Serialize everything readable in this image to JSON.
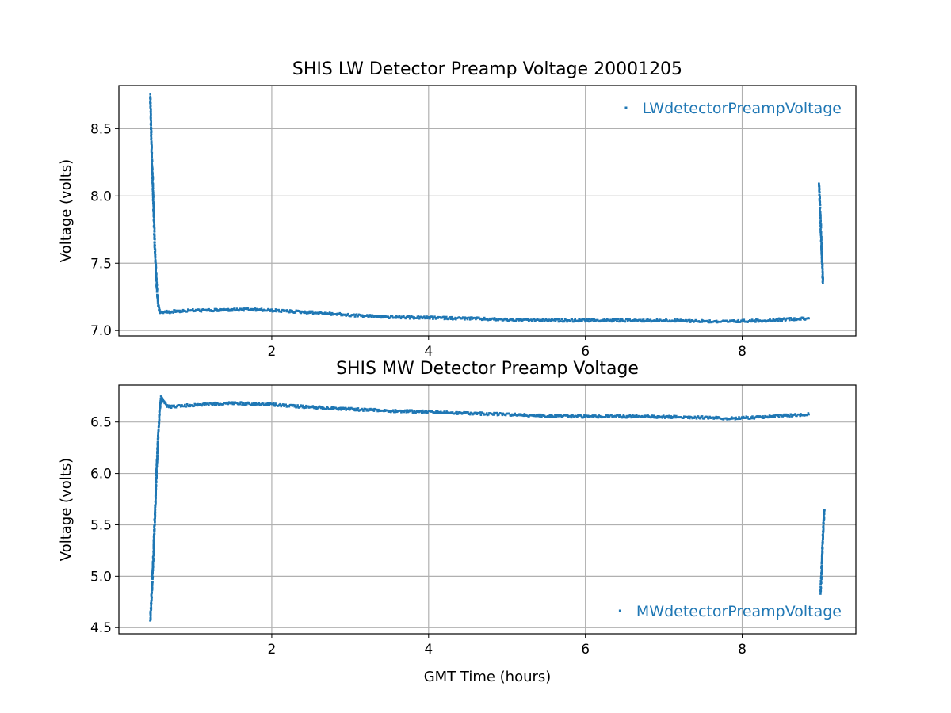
{
  "chart_data": [
    {
      "type": "scatter",
      "title": "SHIS LW Detector Preamp Voltage 20001205",
      "xlabel": "",
      "ylabel": "Voltage (volts)",
      "xlim": [
        0.05,
        9.45
      ],
      "ylim": [
        6.96,
        8.82
      ],
      "xticks": [
        2,
        4,
        6,
        8
      ],
      "yticks": [
        7.0,
        7.5,
        8.0,
        8.5
      ],
      "xtick_labels": [
        "2",
        "4",
        "6",
        "8"
      ],
      "ytick_labels": [
        "7.0",
        "7.5",
        "8.0",
        "8.5"
      ],
      "grid": true,
      "legend_position": "upper-right",
      "color": "#1f77b4",
      "series": [
        {
          "name": "LWdetectorPreampVoltage",
          "segments": [
            {
              "x": [
                0.45,
                0.47,
                0.49,
                0.51,
                0.53,
                0.55,
                0.57,
                0.6,
                0.65,
                0.7,
                0.8,
                1.0,
                1.2,
                1.5,
                1.8,
                2.0,
                2.5,
                3.0,
                3.5,
                4.0,
                4.5,
                5.0,
                5.5,
                6.0,
                6.5,
                7.0,
                7.5,
                7.8,
                8.0,
                8.3,
                8.6,
                8.85
              ],
              "y": [
                8.75,
                8.3,
                7.95,
                7.6,
                7.35,
                7.2,
                7.14,
                7.13,
                7.14,
                7.14,
                7.145,
                7.15,
                7.15,
                7.155,
                7.155,
                7.15,
                7.135,
                7.115,
                7.1,
                7.095,
                7.09,
                7.08,
                7.075,
                7.075,
                7.075,
                7.075,
                7.07,
                7.065,
                7.07,
                7.075,
                7.085,
                7.09
              ]
            },
            {
              "x": [
                8.98,
                8.99,
                9.0,
                9.01,
                9.02,
                9.03
              ],
              "y": [
                8.1,
                7.95,
                7.8,
                7.65,
                7.5,
                7.35
              ]
            }
          ]
        }
      ]
    },
    {
      "type": "scatter",
      "title": "SHIS MW Detector Preamp Voltage",
      "xlabel": "GMT Time (hours)",
      "ylabel": "Voltage (volts)",
      "xlim": [
        0.05,
        9.45
      ],
      "ylim": [
        4.44,
        6.86
      ],
      "xticks": [
        2,
        4,
        6,
        8
      ],
      "yticks": [
        4.5,
        5.0,
        5.5,
        6.0,
        6.5
      ],
      "xtick_labels": [
        "2",
        "4",
        "6",
        "8"
      ],
      "ytick_labels": [
        "4.5",
        "5.0",
        "5.5",
        "6.0",
        "6.5"
      ],
      "grid": true,
      "legend_position": "lower-right",
      "color": "#1f77b4",
      "series": [
        {
          "name": "MWdetectorPreampVoltage",
          "segments": [
            {
              "x": [
                0.45,
                0.47,
                0.49,
                0.51,
                0.53,
                0.55,
                0.57,
                0.59,
                0.61,
                0.63,
                0.66,
                0.7,
                0.8,
                1.0,
                1.2,
                1.5,
                2.0,
                2.5,
                3.0,
                3.5,
                4.0,
                4.5,
                5.0,
                5.5,
                6.0,
                6.5,
                7.0,
                7.5,
                7.8,
                8.0,
                8.3,
                8.6,
                8.85
              ],
              "y": [
                4.56,
                4.85,
                5.2,
                5.6,
                6.0,
                6.35,
                6.62,
                6.74,
                6.72,
                6.68,
                6.66,
                6.65,
                6.655,
                6.665,
                6.675,
                6.685,
                6.67,
                6.645,
                6.625,
                6.61,
                6.6,
                6.585,
                6.575,
                6.56,
                6.555,
                6.555,
                6.55,
                6.545,
                6.535,
                6.54,
                6.55,
                6.565,
                6.575
              ]
            },
            {
              "x": [
                9.0,
                9.01,
                9.02,
                9.03,
                9.04,
                9.05
              ],
              "y": [
                4.84,
                5.0,
                5.2,
                5.4,
                5.55,
                5.64
              ]
            }
          ]
        }
      ]
    }
  ]
}
